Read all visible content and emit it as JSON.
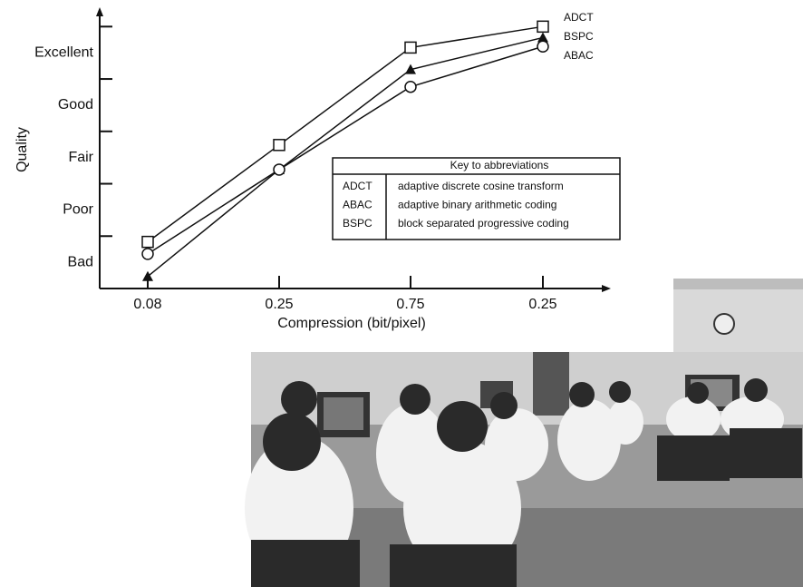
{
  "chart_data": {
    "type": "line",
    "x_label": "Compression (bit/pixel)",
    "y_label": "Quality",
    "categories": [
      "0.08",
      "0.25",
      "0.75",
      "0.25"
    ],
    "series": [
      {
        "name": "ADCT",
        "color": "#111111",
        "marker": "square",
        "values": [
          0.89,
          2.74,
          4.6,
          5.0
        ]
      },
      {
        "name": "BSPC",
        "color": "#111111",
        "marker": "triangle",
        "values": [
          0.23,
          2.27,
          4.18,
          4.79
        ]
      },
      {
        "name": "ABAC",
        "color": "#111111",
        "marker": "circle",
        "values": [
          0.66,
          2.27,
          3.85,
          4.62
        ]
      }
    ],
    "ylim": [
      0,
      5.3
    ],
    "yticks": [
      {
        "value": 0.5,
        "label": "Bad"
      },
      {
        "value": 1.5,
        "label": "Poor"
      },
      {
        "value": 2.5,
        "label": "Fair"
      },
      {
        "value": 3.5,
        "label": "Good"
      },
      {
        "value": 4.5,
        "label": "Excellent"
      }
    ],
    "ytick_marks": [
      1,
      2,
      3,
      4,
      5
    ],
    "key": {
      "title": "Key to abbreviations",
      "rows": [
        [
          "ADCT",
          "adaptive discrete cosine transform"
        ],
        [
          "ABAC",
          "adaptive binary arithmetic coding"
        ],
        [
          "BSPC",
          "block separated progressive coding"
        ]
      ]
    }
  }
}
